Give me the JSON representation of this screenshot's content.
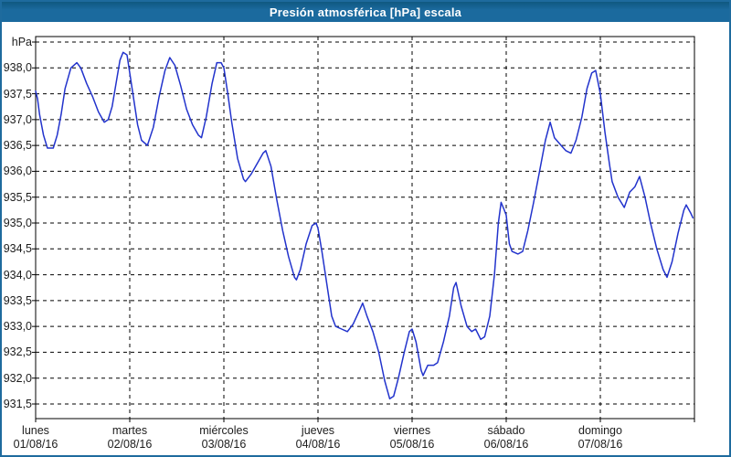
{
  "window": {
    "title": "Presión atmosférica [hPa] escala"
  },
  "colors": {
    "title_bar_bg": "#1b6a9e",
    "title_bar_top_edge": "#0f5880",
    "title_text": "#ffffff",
    "outer_border": "#1e6b9e",
    "plot_border": "#000000",
    "gridline": "#000000",
    "series_line": "#2233cc",
    "label_text": "#1c1c1c",
    "plot_background": "#ffffff"
  },
  "chart_data": {
    "type": "line",
    "title": "Presión atmosférica [hPa] escala",
    "unit_label": "hPa",
    "ylabel": "hPa",
    "xlabel": "",
    "grid": "dashed",
    "legend": "none",
    "ylim": [
      931.2,
      938.6
    ],
    "ytick_step": 0.5,
    "yticks": [
      {
        "value": 938.5,
        "label": ""
      },
      {
        "value": 938.0,
        "label": "938,0"
      },
      {
        "value": 937.5,
        "label": "937,5"
      },
      {
        "value": 937.0,
        "label": "937,0"
      },
      {
        "value": 936.5,
        "label": "936,5"
      },
      {
        "value": 936.0,
        "label": "936,0"
      },
      {
        "value": 935.5,
        "label": "935,5"
      },
      {
        "value": 935.0,
        "label": "935,0"
      },
      {
        "value": 934.5,
        "label": "934,5"
      },
      {
        "value": 934.0,
        "label": "934,0"
      },
      {
        "value": 933.5,
        "label": "933,5"
      },
      {
        "value": 933.0,
        "label": "933,0"
      },
      {
        "value": 932.5,
        "label": "932,5"
      },
      {
        "value": 932.0,
        "label": "932,0"
      },
      {
        "value": 931.5,
        "label": "931,5"
      }
    ],
    "x_unit": "hours",
    "xlim": [
      0,
      168
    ],
    "days": [
      {
        "name": "lunes",
        "date": "01/08/16"
      },
      {
        "name": "martes",
        "date": "02/08/16"
      },
      {
        "name": "miércoles",
        "date": "03/08/16"
      },
      {
        "name": "jueves",
        "date": "04/08/16"
      },
      {
        "name": "viernes",
        "date": "05/08/16"
      },
      {
        "name": "sábado",
        "date": "06/08/16"
      },
      {
        "name": "domingo",
        "date": "07/08/16"
      }
    ],
    "series": [
      {
        "name": "Presión atmosférica [hPa]",
        "color": "#2233cc",
        "points": [
          [
            0,
            937.55
          ],
          [
            0.5,
            937.4
          ],
          [
            1,
            937.1
          ],
          [
            2,
            936.7
          ],
          [
            3,
            936.45
          ],
          [
            4.5,
            936.45
          ],
          [
            5.5,
            936.7
          ],
          [
            6.5,
            937.1
          ],
          [
            7.5,
            937.6
          ],
          [
            9,
            938.0
          ],
          [
            10.5,
            938.1
          ],
          [
            11.5,
            938.0
          ],
          [
            13,
            937.7
          ],
          [
            14.5,
            937.45
          ],
          [
            16,
            937.15
          ],
          [
            17.5,
            936.95
          ],
          [
            18.5,
            937.0
          ],
          [
            19.5,
            937.25
          ],
          [
            20.5,
            937.7
          ],
          [
            21.5,
            938.15
          ],
          [
            22.3,
            938.3
          ],
          [
            23.3,
            938.25
          ],
          [
            24,
            937.9
          ],
          [
            25,
            937.4
          ],
          [
            26,
            936.9
          ],
          [
            27,
            936.6
          ],
          [
            28.5,
            936.5
          ],
          [
            30,
            936.85
          ],
          [
            31.5,
            937.45
          ],
          [
            33,
            937.95
          ],
          [
            34.2,
            938.2
          ],
          [
            35.5,
            938.05
          ],
          [
            37,
            937.65
          ],
          [
            38.5,
            937.2
          ],
          [
            40,
            936.9
          ],
          [
            41.5,
            936.7
          ],
          [
            42.3,
            936.65
          ],
          [
            43.5,
            937.05
          ],
          [
            45,
            937.7
          ],
          [
            46.2,
            938.1
          ],
          [
            47.3,
            938.1
          ],
          [
            48,
            938.0
          ],
          [
            49,
            937.5
          ],
          [
            50,
            936.95
          ],
          [
            51.5,
            936.25
          ],
          [
            53,
            935.85
          ],
          [
            53.5,
            935.8
          ],
          [
            55,
            935.95
          ],
          [
            56.5,
            936.15
          ],
          [
            58,
            936.35
          ],
          [
            58.7,
            936.4
          ],
          [
            60,
            936.1
          ],
          [
            61.5,
            935.45
          ],
          [
            63,
            934.85
          ],
          [
            64.5,
            934.35
          ],
          [
            66,
            933.95
          ],
          [
            66.5,
            933.9
          ],
          [
            67.5,
            934.1
          ],
          [
            69,
            934.6
          ],
          [
            70.5,
            934.95
          ],
          [
            71.5,
            935.0
          ],
          [
            72,
            934.9
          ],
          [
            73,
            934.45
          ],
          [
            74.5,
            933.7
          ],
          [
            75.5,
            933.2
          ],
          [
            76.5,
            933.0
          ],
          [
            78,
            932.95
          ],
          [
            79.5,
            932.9
          ],
          [
            81,
            933.05
          ],
          [
            82.5,
            933.3
          ],
          [
            83.4,
            933.45
          ],
          [
            84.5,
            933.2
          ],
          [
            86,
            932.9
          ],
          [
            87.5,
            932.5
          ],
          [
            89,
            931.95
          ],
          [
            90.3,
            931.6
          ],
          [
            91.3,
            931.65
          ],
          [
            92.5,
            932.0
          ],
          [
            94,
            932.5
          ],
          [
            95.3,
            932.9
          ],
          [
            96,
            932.95
          ],
          [
            97,
            932.7
          ],
          [
            98.3,
            932.15
          ],
          [
            98.8,
            932.05
          ],
          [
            100,
            932.25
          ],
          [
            101.5,
            932.25
          ],
          [
            102.5,
            932.3
          ],
          [
            104,
            932.7
          ],
          [
            105.5,
            933.2
          ],
          [
            106.6,
            933.75
          ],
          [
            107.2,
            933.85
          ],
          [
            108.5,
            933.4
          ],
          [
            110,
            933.0
          ],
          [
            111.2,
            932.9
          ],
          [
            112.2,
            932.95
          ],
          [
            113.5,
            932.75
          ],
          [
            114.5,
            932.8
          ],
          [
            115.8,
            933.2
          ],
          [
            117,
            934.0
          ],
          [
            118,
            935.0
          ],
          [
            118.7,
            935.4
          ],
          [
            119.5,
            935.25
          ],
          [
            120,
            935.15
          ],
          [
            120.8,
            934.6
          ],
          [
            121.5,
            934.45
          ],
          [
            123,
            934.4
          ],
          [
            124.2,
            934.45
          ],
          [
            125.5,
            934.85
          ],
          [
            127,
            935.4
          ],
          [
            128.5,
            936.0
          ],
          [
            130,
            936.6
          ],
          [
            131.2,
            936.95
          ],
          [
            132.3,
            936.65
          ],
          [
            134,
            936.5
          ],
          [
            135.2,
            936.4
          ],
          [
            136.5,
            936.35
          ],
          [
            137.8,
            936.6
          ],
          [
            139.3,
            937.05
          ],
          [
            140.6,
            937.6
          ],
          [
            141.8,
            937.9
          ],
          [
            142.8,
            937.95
          ],
          [
            144,
            937.5
          ],
          [
            145.2,
            936.75
          ],
          [
            146.3,
            936.15
          ],
          [
            147,
            935.8
          ],
          [
            148.5,
            935.5
          ],
          [
            150.1,
            935.3
          ],
          [
            151.5,
            935.6
          ],
          [
            152.8,
            935.7
          ],
          [
            154,
            935.9
          ],
          [
            155.4,
            935.5
          ],
          [
            156.8,
            935.0
          ],
          [
            158.4,
            934.5
          ],
          [
            160,
            934.1
          ],
          [
            161,
            933.95
          ],
          [
            162.3,
            934.25
          ],
          [
            163.8,
            934.8
          ],
          [
            165.3,
            935.25
          ],
          [
            165.9,
            935.35
          ],
          [
            167,
            935.2
          ],
          [
            167.6,
            935.1
          ]
        ]
      }
    ]
  }
}
